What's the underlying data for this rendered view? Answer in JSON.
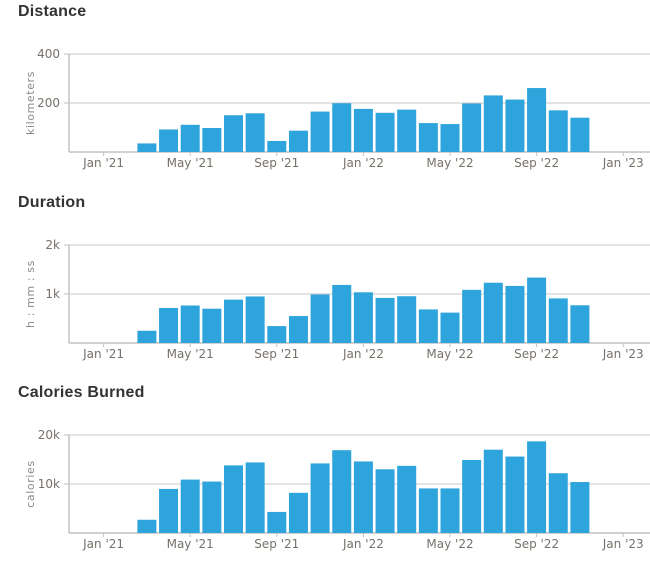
{
  "colors": {
    "bar": "#2EA4DC",
    "grid": "#C9C9C9",
    "axis": "#C2C2C2",
    "title": "#333333",
    "tick_label": "#76716A",
    "unit_label": "#8E8A84"
  },
  "x_axis": {
    "origin_label": "Jan '21",
    "tick_labels": [
      {
        "label": "Jan '21",
        "month_index": 0
      },
      {
        "label": "May '21",
        "month_index": 4
      },
      {
        "label": "Sep '21",
        "month_index": 8
      },
      {
        "label": "Jan '22",
        "month_index": 12
      },
      {
        "label": "May '22",
        "month_index": 16
      },
      {
        "label": "Sep '22",
        "month_index": 20
      },
      {
        "label": "Jan '23",
        "month_index": 24
      }
    ],
    "domain_months": 24,
    "bars_start_month_index": 2
  },
  "chart_data": [
    {
      "type": "bar",
      "title": "Distance",
      "ylabel": "kilometers",
      "xlabel": "",
      "ylim": [
        0,
        400
      ],
      "y_ticks": [
        {
          "label": "200",
          "value": 200
        },
        {
          "label": "400",
          "value": 400
        }
      ],
      "legend": "none",
      "grid": "horizontal",
      "categories": [
        "Mar '21",
        "Apr '21",
        "May '21",
        "Jun '21",
        "Jul '21",
        "Aug '21",
        "Sep '21",
        "Oct '21",
        "Nov '21",
        "Dec '21",
        "Jan '22",
        "Feb '22",
        "Mar '22",
        "Apr '22",
        "May '22",
        "Jun '22",
        "Jul '22",
        "Aug '22",
        "Sep '22",
        "Oct '22",
        "Nov '22"
      ],
      "values": [
        35,
        92,
        111,
        98,
        150,
        158,
        45,
        87,
        165,
        199,
        176,
        160,
        173,
        118,
        114,
        198,
        231,
        214,
        261,
        170,
        140
      ]
    },
    {
      "type": "bar",
      "title": "Duration",
      "ylabel": "h : mm : ss",
      "xlabel": "",
      "ylim": [
        0,
        2000
      ],
      "y_ticks": [
        {
          "label": "1k",
          "value": 1000
        },
        {
          "label": "2k",
          "value": 2000
        }
      ],
      "legend": "none",
      "grid": "horizontal",
      "categories": [
        "Mar '21",
        "Apr '21",
        "May '21",
        "Jun '21",
        "Jul '21",
        "Aug '21",
        "Sep '21",
        "Oct '21",
        "Nov '21",
        "Dec '21",
        "Jan '22",
        "Feb '22",
        "Mar '22",
        "Apr '22",
        "May '22",
        "Jun '22",
        "Jul '22",
        "Aug '22",
        "Sep '22",
        "Oct '22",
        "Nov '22"
      ],
      "values": [
        250,
        715,
        765,
        700,
        885,
        950,
        345,
        550,
        990,
        1185,
        1035,
        920,
        955,
        685,
        620,
        1085,
        1230,
        1165,
        1335,
        910,
        770
      ]
    },
    {
      "type": "bar",
      "title": "Calories Burned",
      "ylabel": "calories",
      "xlabel": "",
      "ylim": [
        0,
        20000
      ],
      "y_ticks": [
        {
          "label": "10k",
          "value": 10000
        },
        {
          "label": "20k",
          "value": 20000
        }
      ],
      "legend": "none",
      "grid": "horizontal",
      "categories": [
        "Mar '21",
        "Apr '21",
        "May '21",
        "Jun '21",
        "Jul '21",
        "Aug '21",
        "Sep '21",
        "Oct '21",
        "Nov '21",
        "Dec '21",
        "Jan '22",
        "Feb '22",
        "Mar '22",
        "Apr '22",
        "May '22",
        "Jun '22",
        "Jul '22",
        "Aug '22",
        "Sep '22",
        "Oct '22",
        "Nov '22"
      ],
      "values": [
        2700,
        9000,
        10900,
        10500,
        13800,
        14400,
        4300,
        8200,
        14200,
        16900,
        14600,
        13000,
        13700,
        9100,
        9100,
        14900,
        17000,
        15600,
        18700,
        12200,
        10400
      ]
    }
  ]
}
